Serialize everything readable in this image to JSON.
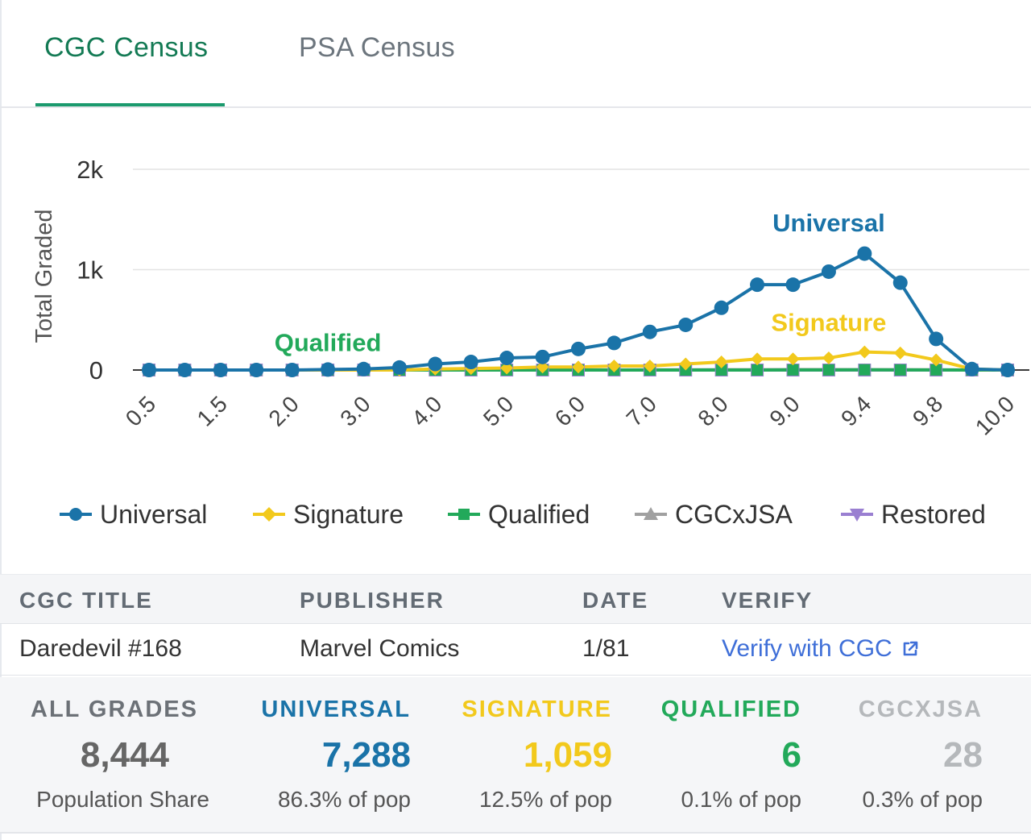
{
  "tabs": [
    {
      "label": "CGC Census",
      "active": true
    },
    {
      "label": "PSA Census",
      "active": false
    }
  ],
  "chart_data": {
    "type": "line",
    "ylabel": "Total Graded",
    "ylim": [
      0,
      2000
    ],
    "yticks": [
      0,
      1000,
      2000
    ],
    "ytick_labels": [
      "0",
      "1k",
      "2k"
    ],
    "grid": true,
    "legend": "bottom",
    "x": [
      0.5,
      1.0,
      1.5,
      1.8,
      2.0,
      2.5,
      3.0,
      3.5,
      4.0,
      4.5,
      5.0,
      5.5,
      6.0,
      6.5,
      7.0,
      7.5,
      8.0,
      8.5,
      9.0,
      9.2,
      9.4,
      9.6,
      9.8,
      9.9,
      10.0
    ],
    "x_tick_labels": [
      "0.5",
      "1.5",
      "2.0",
      "3.0",
      "4.0",
      "5.0",
      "6.0",
      "7.0",
      "8.0",
      "9.0",
      "9.4",
      "9.8",
      "10.0"
    ],
    "x_tick_indices": [
      0,
      2,
      4,
      6,
      8,
      10,
      12,
      14,
      16,
      18,
      20,
      22,
      24
    ],
    "series": [
      {
        "name": "Universal",
        "color": "#1a73a8",
        "marker": "circle",
        "values": [
          0,
          0,
          0,
          0,
          0,
          5,
          10,
          25,
          60,
          80,
          120,
          130,
          210,
          270,
          380,
          450,
          620,
          850,
          850,
          980,
          1160,
          870,
          310,
          10,
          0
        ]
      },
      {
        "name": "Signature",
        "color": "#f2c91c",
        "marker": "diamond",
        "values": [
          0,
          0,
          0,
          0,
          0,
          0,
          0,
          0,
          10,
          15,
          20,
          30,
          30,
          40,
          40,
          60,
          80,
          110,
          110,
          120,
          180,
          170,
          100,
          10,
          0
        ]
      },
      {
        "name": "Qualified",
        "color": "#22a95a",
        "marker": "square",
        "values": [
          0,
          0,
          0,
          0,
          0,
          0,
          0,
          0,
          0,
          0,
          0,
          0,
          0,
          0,
          0,
          0,
          0,
          0,
          1,
          1,
          2,
          1,
          1,
          0,
          0
        ]
      },
      {
        "name": "CGCxJSA",
        "color": "#a0a0a0",
        "marker": "triangle",
        "values": [
          0,
          0,
          0,
          0,
          0,
          0,
          0,
          0,
          0,
          0,
          0,
          0,
          1,
          1,
          2,
          2,
          3,
          3,
          4,
          4,
          3,
          3,
          2,
          0,
          0
        ]
      },
      {
        "name": "Restored",
        "color": "#9a7fd1",
        "marker": "triangle-down",
        "values": [
          0,
          0,
          0,
          0,
          0,
          0,
          0,
          0,
          0,
          0,
          0,
          0,
          0,
          0,
          0,
          0,
          0,
          0,
          0,
          0,
          0,
          0,
          0,
          0,
          0
        ]
      }
    ],
    "annotations": [
      {
        "text": "Universal",
        "color": "#1a73a8",
        "x": 9.2,
        "y": 1380
      },
      {
        "text": "Signature",
        "color": "#f2c91c",
        "x": 9.2,
        "y": 390
      },
      {
        "text": "Qualified",
        "color": "#22a95a",
        "x": 2.5,
        "y": 190
      }
    ]
  },
  "table": {
    "headers": [
      "CGC TITLE",
      "PUBLISHER",
      "DATE",
      "VERIFY"
    ],
    "row": {
      "title": "Daredevil #168",
      "publisher": "Marvel Comics",
      "date": "1/81",
      "verify": "Verify with CGC"
    }
  },
  "stats": [
    {
      "label": "ALL GRADES",
      "value": "8,444",
      "sub": "Population Share",
      "color": "#6c7177",
      "value_color": "#666666"
    },
    {
      "label": "UNIVERSAL",
      "value": "7,288",
      "sub": "86.3% of pop",
      "color": "#1a73a8",
      "value_color": "#1a73a8"
    },
    {
      "label": "SIGNATURE",
      "value": "1,059",
      "sub": "12.5% of pop",
      "color": "#f2c91c",
      "value_color": "#f2c91c"
    },
    {
      "label": "QUALIFIED",
      "value": "6",
      "sub": "0.1% of pop",
      "color": "#22a95a",
      "value_color": "#22a95a"
    },
    {
      "label": "CGCXJSA",
      "value": "28",
      "sub": "0.3% of pop",
      "color": "#b5b8bb",
      "value_color": "#b5b8bb"
    }
  ],
  "icons": {
    "external_link": "external-link-icon"
  }
}
